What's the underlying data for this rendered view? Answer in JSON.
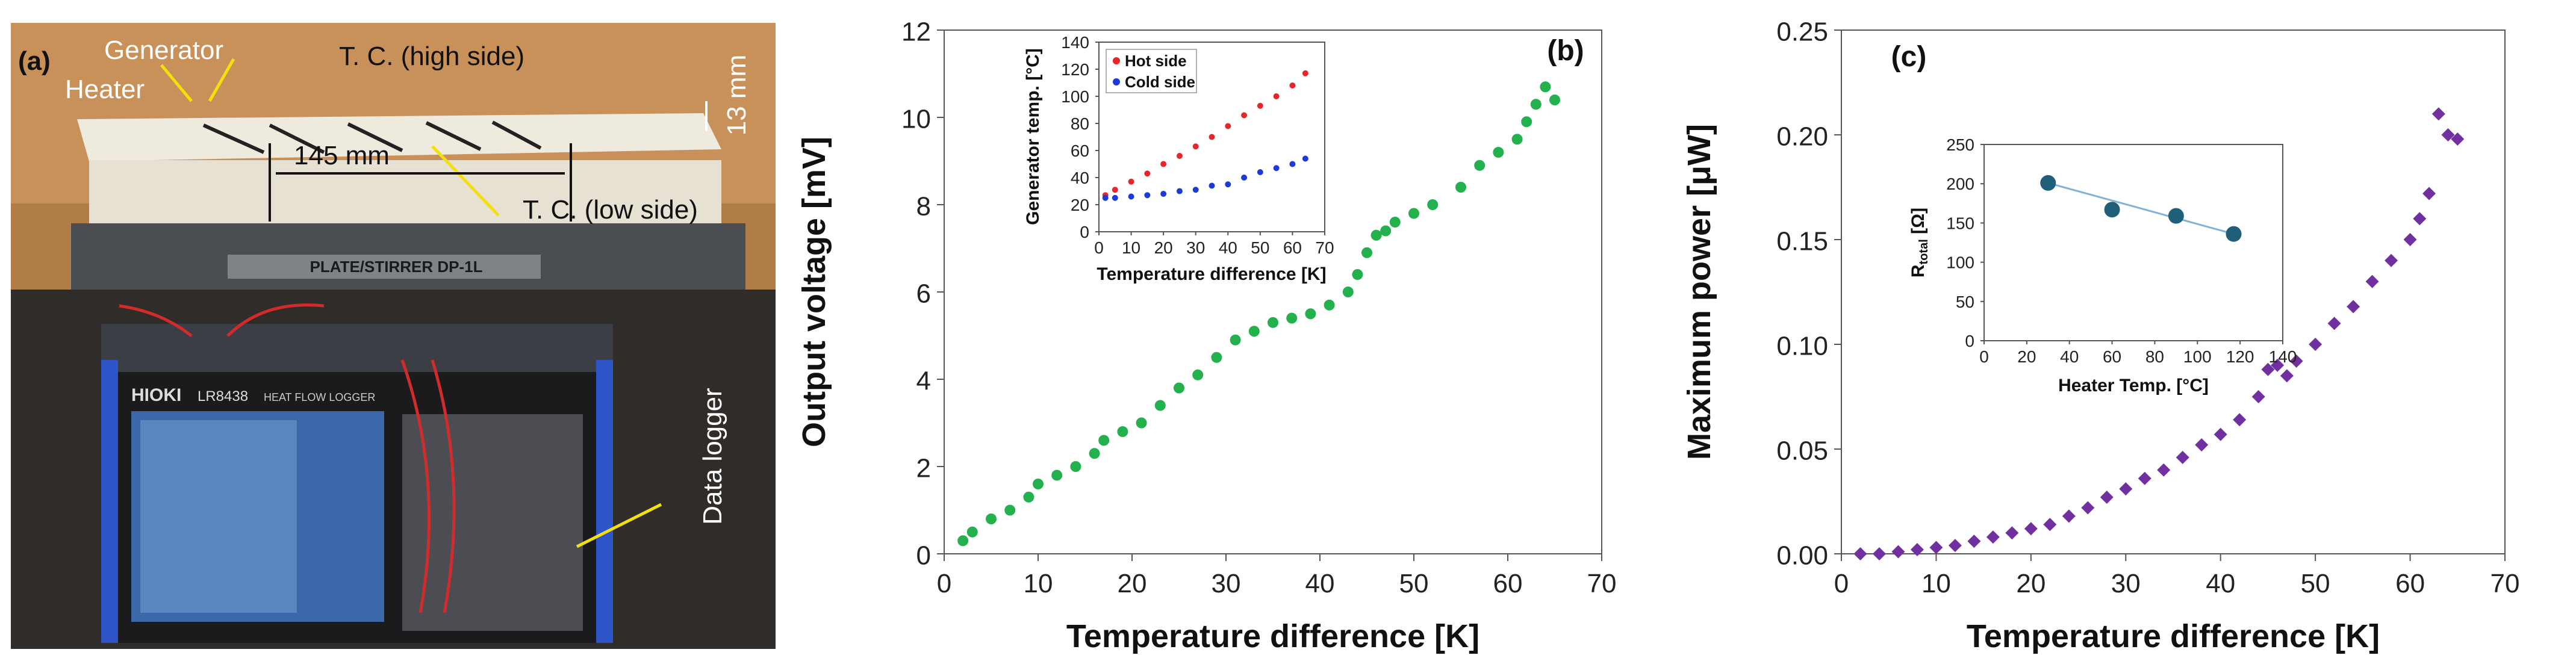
{
  "photo": {
    "panel_label": "(a)",
    "labels": {
      "generator": "Generator",
      "tc_high": "T. C. (high side)",
      "heater": "Heater",
      "thickness": "13 mm",
      "width": "145 mm",
      "tc_low": "T. C. (low side)",
      "logger": "Data logger"
    },
    "device_text": {
      "brand": "HIOKI",
      "model": "LR8438",
      "mode": "HEAT FLOW LOGGER",
      "stirrer": "PLATE/STIRRER DP-1L"
    }
  },
  "chart_data": [
    {
      "panel": "(b)",
      "type": "scatter",
      "xlabel": "Temperature difference [K]",
      "ylabel": "Output voltage [mV]",
      "xlim": [
        0,
        70
      ],
      "ylim": [
        0,
        12
      ],
      "xticks": [
        "0",
        "10",
        "20",
        "30",
        "40",
        "50",
        "60",
        "70"
      ],
      "yticks": [
        "0",
        "2",
        "4",
        "6",
        "8",
        "10",
        "12"
      ],
      "color": "#22b14c",
      "series": [
        {
          "name": "Output voltage",
          "x": [
            2,
            3,
            5,
            7,
            9,
            10,
            12,
            14,
            16,
            17,
            19,
            21,
            23,
            25,
            27,
            29,
            31,
            33,
            35,
            37,
            39,
            41,
            43,
            44,
            45,
            46,
            47,
            48,
            50,
            52,
            55,
            57,
            59,
            61,
            62,
            63,
            64,
            65
          ],
          "y": [
            0.3,
            0.5,
            0.8,
            1.0,
            1.3,
            1.6,
            1.8,
            2.0,
            2.3,
            2.6,
            2.8,
            3.0,
            3.4,
            3.8,
            4.1,
            4.5,
            4.9,
            5.1,
            5.3,
            5.4,
            5.5,
            5.7,
            6.0,
            6.4,
            6.9,
            7.3,
            7.4,
            7.6,
            7.8,
            8.0,
            8.4,
            8.9,
            9.2,
            9.5,
            9.9,
            10.3,
            10.7,
            10.4
          ]
        }
      ],
      "inset": {
        "type": "scatter",
        "xlabel": "Temperature difference [K]",
        "ylabel": "Generator temp. [°C]",
        "xlim": [
          0,
          70
        ],
        "ylim": [
          0,
          140
        ],
        "xticks": [
          "0",
          "10",
          "20",
          "30",
          "40",
          "50",
          "60",
          "70"
        ],
        "yticks": [
          "0",
          "20",
          "40",
          "60",
          "80",
          "100",
          "120",
          "140"
        ],
        "legend": "top-left",
        "series": [
          {
            "name": "Hot side",
            "color": "#e8262a",
            "x": [
              2,
              5,
              10,
              15,
              20,
              25,
              30,
              35,
              40,
              45,
              50,
              55,
              60,
              64
            ],
            "y": [
              27,
              31,
              37,
              43,
              50,
              56,
              63,
              70,
              78,
              86,
              93,
              100,
              108,
              117
            ]
          },
          {
            "name": "Cold side",
            "color": "#1e3ad6",
            "x": [
              2,
              5,
              10,
              15,
              20,
              25,
              30,
              35,
              40,
              45,
              50,
              55,
              60,
              64
            ],
            "y": [
              25,
              25,
              26,
              27,
              28,
              30,
              31,
              34,
              35,
              40,
              44,
              47,
              50,
              54
            ]
          }
        ]
      }
    },
    {
      "panel": "(c)",
      "type": "scatter",
      "xlabel": "Temperature difference [K]",
      "ylabel": "Maximum power [μW]",
      "xlim": [
        0,
        70
      ],
      "ylim": [
        0,
        0.25
      ],
      "xticks": [
        "0",
        "10",
        "20",
        "30",
        "40",
        "50",
        "60",
        "70"
      ],
      "yticks": [
        "0.00",
        "0.05",
        "0.10",
        "0.15",
        "0.20",
        "0.25"
      ],
      "color": "#7030a0",
      "series": [
        {
          "name": "Maximum power",
          "x": [
            2,
            4,
            6,
            8,
            10,
            12,
            14,
            16,
            18,
            20,
            22,
            24,
            26,
            28,
            30,
            32,
            34,
            36,
            38,
            40,
            42,
            44,
            45,
            46,
            47,
            48,
            50,
            52,
            54,
            56,
            58,
            60,
            61,
            62,
            63,
            64,
            65
          ],
          "y": [
            0.0,
            0.0,
            0.001,
            0.002,
            0.003,
            0.004,
            0.006,
            0.008,
            0.01,
            0.012,
            0.014,
            0.018,
            0.022,
            0.027,
            0.031,
            0.036,
            0.04,
            0.046,
            0.052,
            0.057,
            0.064,
            0.075,
            0.088,
            0.09,
            0.085,
            0.092,
            0.1,
            0.11,
            0.118,
            0.13,
            0.14,
            0.15,
            0.16,
            0.172,
            0.21,
            0.2,
            0.198
          ]
        }
      ],
      "inset": {
        "type": "scatter",
        "xlabel": "Heater Temp. [°C]",
        "ylabel": "R_total [Ω]",
        "ylabel_main": "R",
        "ylabel_sub": "total",
        "ylabel_unit": " [Ω]",
        "xlim": [
          0,
          140
        ],
        "ylim": [
          0,
          250
        ],
        "xticks": [
          "0",
          "20",
          "40",
          "60",
          "80",
          "100",
          "120",
          "140"
        ],
        "yticks": [
          "0",
          "50",
          "100",
          "150",
          "200",
          "250"
        ],
        "color": "#1f5f7a",
        "series": [
          {
            "name": "R_total",
            "x": [
              30,
              60,
              90,
              117
            ],
            "y": [
              201,
              167,
              159,
              136
            ]
          }
        ],
        "trend": {
          "x": [
            30,
            117
          ],
          "y": [
            201,
            136
          ]
        }
      }
    }
  ]
}
